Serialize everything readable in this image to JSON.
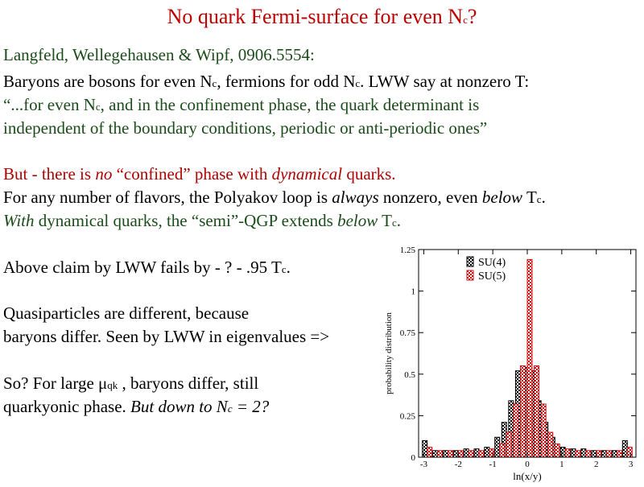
{
  "slide": {
    "title": "No quark Fermi-surface for even N",
    "title_sub": "c",
    "title_end": "?",
    "l1": "Langfeld, Wellegehausen & Wipf, 0906.5554:",
    "l2a": "Baryons are bosons for even N",
    "l2b": ", fermions for odd N",
    "l2c": ".  LWW say at nonzero T:",
    "l3a": "“...for even N",
    "l3b": ", and in the confinement phase, the quark determinant is",
    "l4": "independent of the boundary conditions, periodic or anti-periodic ones”",
    "l5a": "But - there is ",
    "l5b": "no",
    "l5c": " “confined” phase with ",
    "l5d": "dynamical",
    "l5e": " quarks.",
    "l6a": "For any number of flavors, the Polyakov loop is ",
    "l6b": "always",
    "l6c": " nonzero, even ",
    "l6d": "below",
    "l6e": " T",
    "l6f": ".",
    "l7a": "With",
    "l7b": " dynamical quarks, the “semi”-QGP extends ",
    "l7c": "below",
    "l7d": " T",
    "l7e": ".",
    "l8a": "Above claim by LWW fails by - ? - .95 T",
    "l8b": ".",
    "l9": "Quasiparticles are different, because",
    "l10": "baryons differ.  Seen by LWW in eigenvalues =>",
    "l11a": "So?  For large μ",
    "l11b": "qk",
    "l11c": " , baryons differ, still",
    "l12a": "quarkyonic phase.  ",
    "l12b": "But down to N",
    "l12c": " = 2?",
    "sub_c": "c"
  },
  "chart_data": {
    "type": "bar",
    "title": "",
    "xlabel": "ln(x/y)",
    "ylabel": "probability distribution",
    "xlim": [
      -3.15,
      3.15
    ],
    "ylim": [
      0,
      1.25
    ],
    "xticks": [
      "-3",
      "-2",
      "-1",
      "0",
      "1",
      "2",
      "3"
    ],
    "yticks": [
      "0",
      "0.25",
      "0.5",
      "0.75",
      "1",
      "1.25"
    ],
    "legend_position": "top-right",
    "x": [
      -2.9,
      -2.6,
      -2.3,
      -2.0,
      -1.7,
      -1.4,
      -1.1,
      -0.8,
      -0.6,
      -0.4,
      -0.2,
      0.0,
      0.2,
      0.4,
      0.6,
      0.8,
      1.1,
      1.4,
      1.7,
      2.0,
      2.3,
      2.6,
      2.9
    ],
    "series": [
      {
        "name": "SU(4)",
        "color": "#000000",
        "values": [
          0.1,
          0.04,
          0.04,
          0.04,
          0.05,
          0.05,
          0.06,
          0.12,
          0.21,
          0.34,
          0.52,
          0.54,
          0.52,
          0.34,
          0.21,
          0.12,
          0.06,
          0.05,
          0.05,
          0.04,
          0.04,
          0.04,
          0.1
        ]
      },
      {
        "name": "SU(5)",
        "color": "#d01010",
        "values": [
          0.06,
          0.04,
          0.04,
          0.04,
          0.04,
          0.04,
          0.05,
          0.08,
          0.15,
          0.32,
          0.55,
          1.19,
          0.55,
          0.32,
          0.15,
          0.08,
          0.05,
          0.04,
          0.04,
          0.04,
          0.04,
          0.04,
          0.06
        ]
      }
    ]
  }
}
